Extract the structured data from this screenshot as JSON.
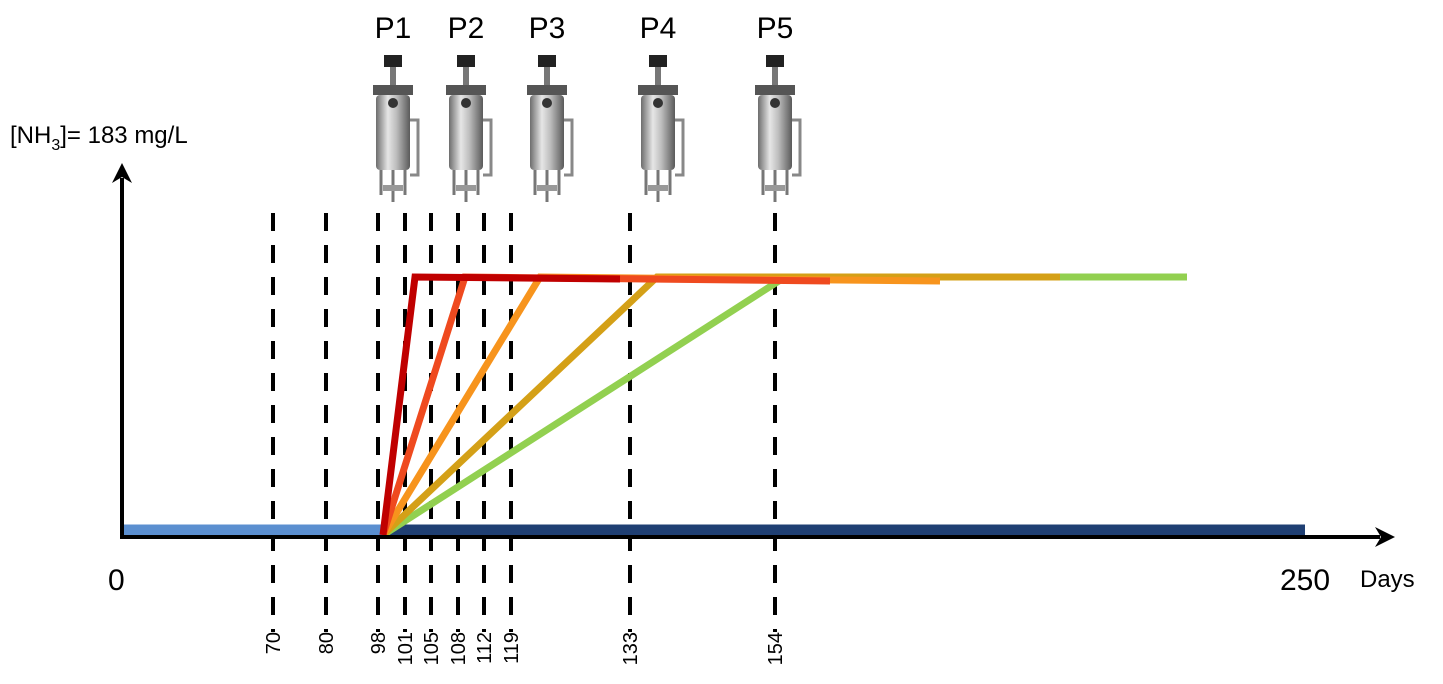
{
  "axis": {
    "y_label": {
      "prefix": "[NH",
      "subscript": "3",
      "suffix": "]= 183 mg/L"
    },
    "x_start": "0",
    "x_end": "250",
    "x_unit": "Days"
  },
  "markers": [
    70,
    80,
    98,
    101,
    105,
    108,
    112,
    119,
    133,
    154
  ],
  "reactors": [
    "P1",
    "P2",
    "P3",
    "P4",
    "P5"
  ]
}
